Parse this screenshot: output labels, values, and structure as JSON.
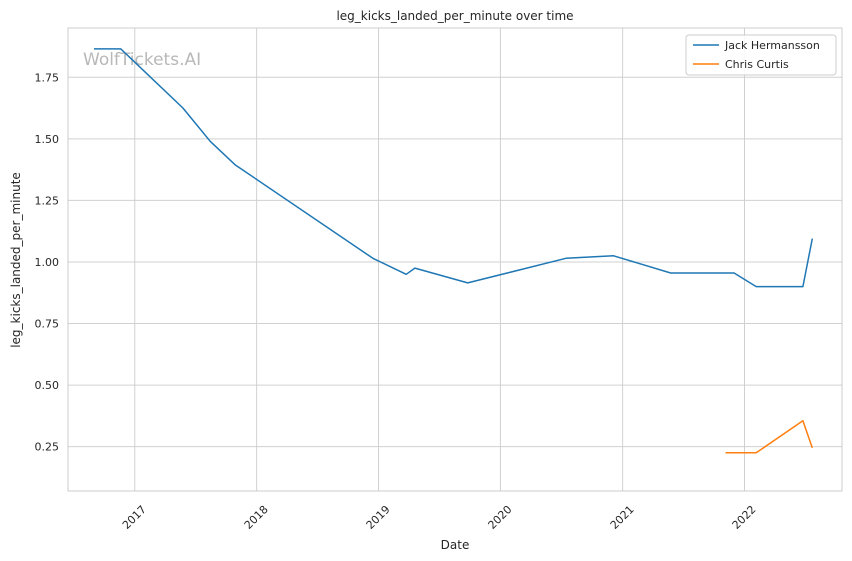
{
  "chart_data": {
    "type": "line",
    "title": "leg_kicks_landed_per_minute over time",
    "xlabel": "Date",
    "ylabel": "leg_kicks_landed_per_minute",
    "watermark": "WolfTickets.AI",
    "x_ticks": [
      "2017",
      "2018",
      "2019",
      "2020",
      "2021",
      "2022"
    ],
    "y_ticks": [
      "0.25",
      "0.50",
      "0.75",
      "1.00",
      "1.25",
      "1.50",
      "1.75"
    ],
    "xlim": [
      "2016-06-15",
      "2022-10-20"
    ],
    "ylim": [
      0.07,
      1.95
    ],
    "grid": true,
    "legend_position": "top-right",
    "series": [
      {
        "name": "Jack Hermansson",
        "color": "#1f77b4",
        "points": [
          {
            "x": "2016-09-01",
            "y": 1.865
          },
          {
            "x": "2016-11-20",
            "y": 1.865
          },
          {
            "x": "2017-05-25",
            "y": 1.625
          },
          {
            "x": "2017-08-15",
            "y": 1.49
          },
          {
            "x": "2017-10-28",
            "y": 1.395
          },
          {
            "x": "2018-12-15",
            "y": 1.015
          },
          {
            "x": "2019-03-25",
            "y": 0.95
          },
          {
            "x": "2019-04-20",
            "y": 0.975
          },
          {
            "x": "2019-09-25",
            "y": 0.915
          },
          {
            "x": "2020-07-15",
            "y": 1.015
          },
          {
            "x": "2020-12-05",
            "y": 1.025
          },
          {
            "x": "2021-05-25",
            "y": 0.955
          },
          {
            "x": "2021-12-01",
            "y": 0.955
          },
          {
            "x": "2022-02-05",
            "y": 0.9
          },
          {
            "x": "2022-06-25",
            "y": 0.9
          },
          {
            "x": "2022-07-23",
            "y": 1.095
          }
        ]
      },
      {
        "name": "Chris Curtis",
        "color": "#ff7f0e",
        "points": [
          {
            "x": "2021-11-05",
            "y": 0.225
          },
          {
            "x": "2022-02-05",
            "y": 0.225
          },
          {
            "x": "2022-06-25",
            "y": 0.355
          },
          {
            "x": "2022-07-23",
            "y": 0.245
          }
        ]
      }
    ]
  }
}
